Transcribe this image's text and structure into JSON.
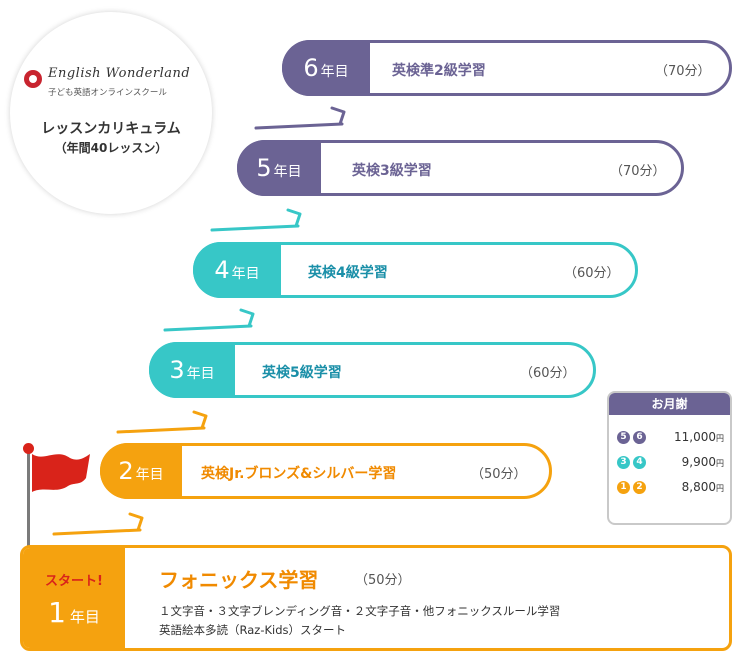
{
  "logo": {
    "name_en": "English Wonderland",
    "name_jp": "子ども英語オンラインスクール"
  },
  "curriculum": {
    "title": "レッスンカリキュラム",
    "subtitle": "（年間40レッスン）"
  },
  "year_unit": "年目",
  "years": [
    {
      "num": "6",
      "label": "英検準2級学習",
      "mins": "（70分）"
    },
    {
      "num": "5",
      "label": "英検3級学習",
      "mins": "（70分）"
    },
    {
      "num": "4",
      "label": "英検4級学習",
      "mins": "（60分）"
    },
    {
      "num": "3",
      "label": "英検5級学習",
      "mins": "（60分）"
    },
    {
      "num": "2",
      "label": "英検Jr.ブロンズ&シルバー学習",
      "mins": "（50分）"
    }
  ],
  "year1": {
    "start": "スタート!",
    "num": "1",
    "label": "フォニックス学習",
    "mins": "（50分）",
    "desc1": "１文字音・３文字ブレンディング音・２文字子音・他フォニックスルール学習",
    "desc2": "英語絵本多読（Raz-Kids）スタート"
  },
  "price": {
    "title": "お月謝",
    "currency": "円",
    "rows": [
      {
        "badges": [
          "5",
          "6"
        ],
        "amount": "11,000"
      },
      {
        "badges": [
          "3",
          "4"
        ],
        "amount": "9,900"
      },
      {
        "badges": [
          "1",
          "2"
        ],
        "amount": "8,800"
      }
    ]
  },
  "colors": {
    "purple": "#6b6394",
    "teal": "#37c7c7",
    "orange": "#f5a20f",
    "red": "#d9231a"
  },
  "icons": [
    "flag-icon",
    "step-arrow-icon"
  ]
}
